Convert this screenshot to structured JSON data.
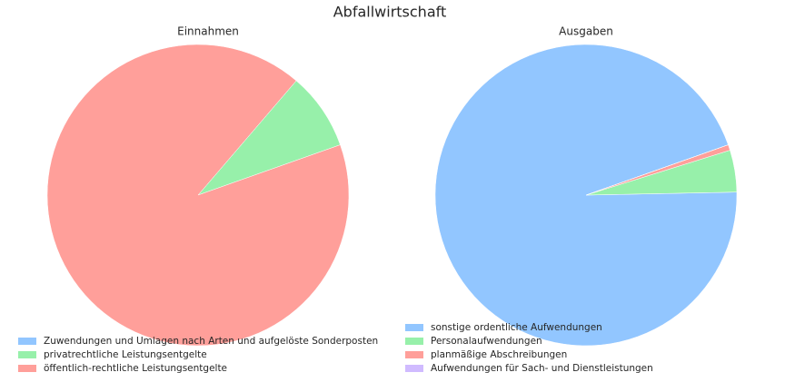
{
  "title": "Abfallwirtschaft",
  "chart_data": [
    {
      "type": "pie",
      "title": "Einnahmen",
      "startangle": 19.5,
      "labels": [
        "Zuwendungen und Umlagen nach Arten und aufgelöste Sonderposten",
        "privatrechtliche Leistungsentgelte",
        "öffentlich-rechtliche Leistungsentgelte"
      ],
      "values": [
        0,
        8.3,
        91.7
      ],
      "colors": [
        "#92c6ff",
        "#97f0aa",
        "#ff9f9a"
      ]
    },
    {
      "type": "pie",
      "title": "Ausgaben",
      "startangle": 19.5,
      "labels": [
        "sonstige ordentliche Aufwendungen",
        "Personalaufwendungen",
        "planmäßige Abschreibungen",
        "Aufwendungen für Sach- und Dienstleistungen"
      ],
      "values": [
        94.9,
        4.5,
        0.6,
        0
      ],
      "colors": [
        "#92c6ff",
        "#97f0aa",
        "#ff9f9a",
        "#d0bbff"
      ]
    }
  ]
}
